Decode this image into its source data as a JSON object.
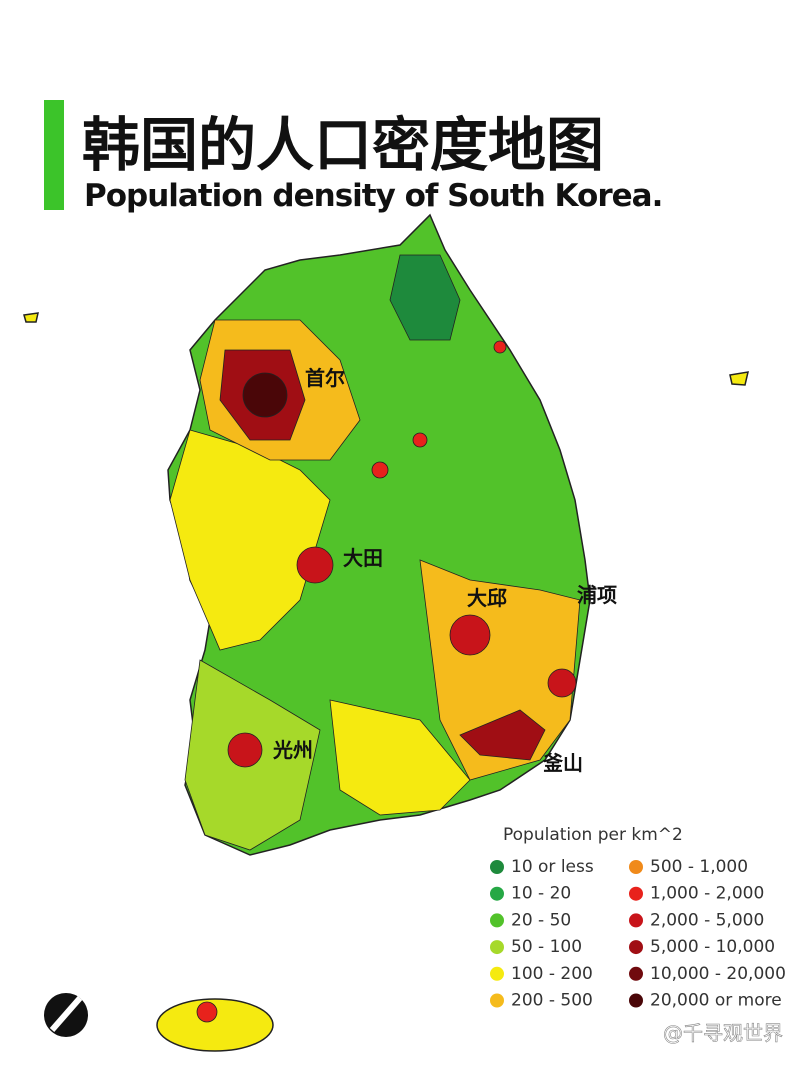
{
  "header": {
    "title": "韩国的人口密度地图",
    "subtitle": "Population density of South Korea."
  },
  "cities": [
    {
      "label": "首尔"
    },
    {
      "label": "大田"
    },
    {
      "label": "大邱"
    },
    {
      "label": "浦项"
    },
    {
      "label": "光州"
    },
    {
      "label": "釜山"
    }
  ],
  "legend": {
    "title": "Population per km^2",
    "items": [
      {
        "label": "10 or less",
        "color": "#1e8a3c"
      },
      {
        "label": "10 - 20",
        "color": "#26a845"
      },
      {
        "label": "20 - 50",
        "color": "#52c22a"
      },
      {
        "label": "50 - 100",
        "color": "#a6d92a"
      },
      {
        "label": "100 - 200",
        "color": "#f5ea10"
      },
      {
        "label": "200 - 500",
        "color": "#f5bb1c"
      },
      {
        "label": "500 - 1,000",
        "color": "#f08a1a"
      },
      {
        "label": "1,000 - 2,000",
        "color": "#e8221c"
      },
      {
        "label": "2,000 - 5,000",
        "color": "#c8141a"
      },
      {
        "label": "5,000 - 10,000",
        "color": "#a00e14"
      },
      {
        "label": "10,000 - 20,000",
        "color": "#700a0e"
      },
      {
        "label": "20,000 or more",
        "color": "#4a0608"
      }
    ]
  },
  "watermark": "@千寻观世界"
}
